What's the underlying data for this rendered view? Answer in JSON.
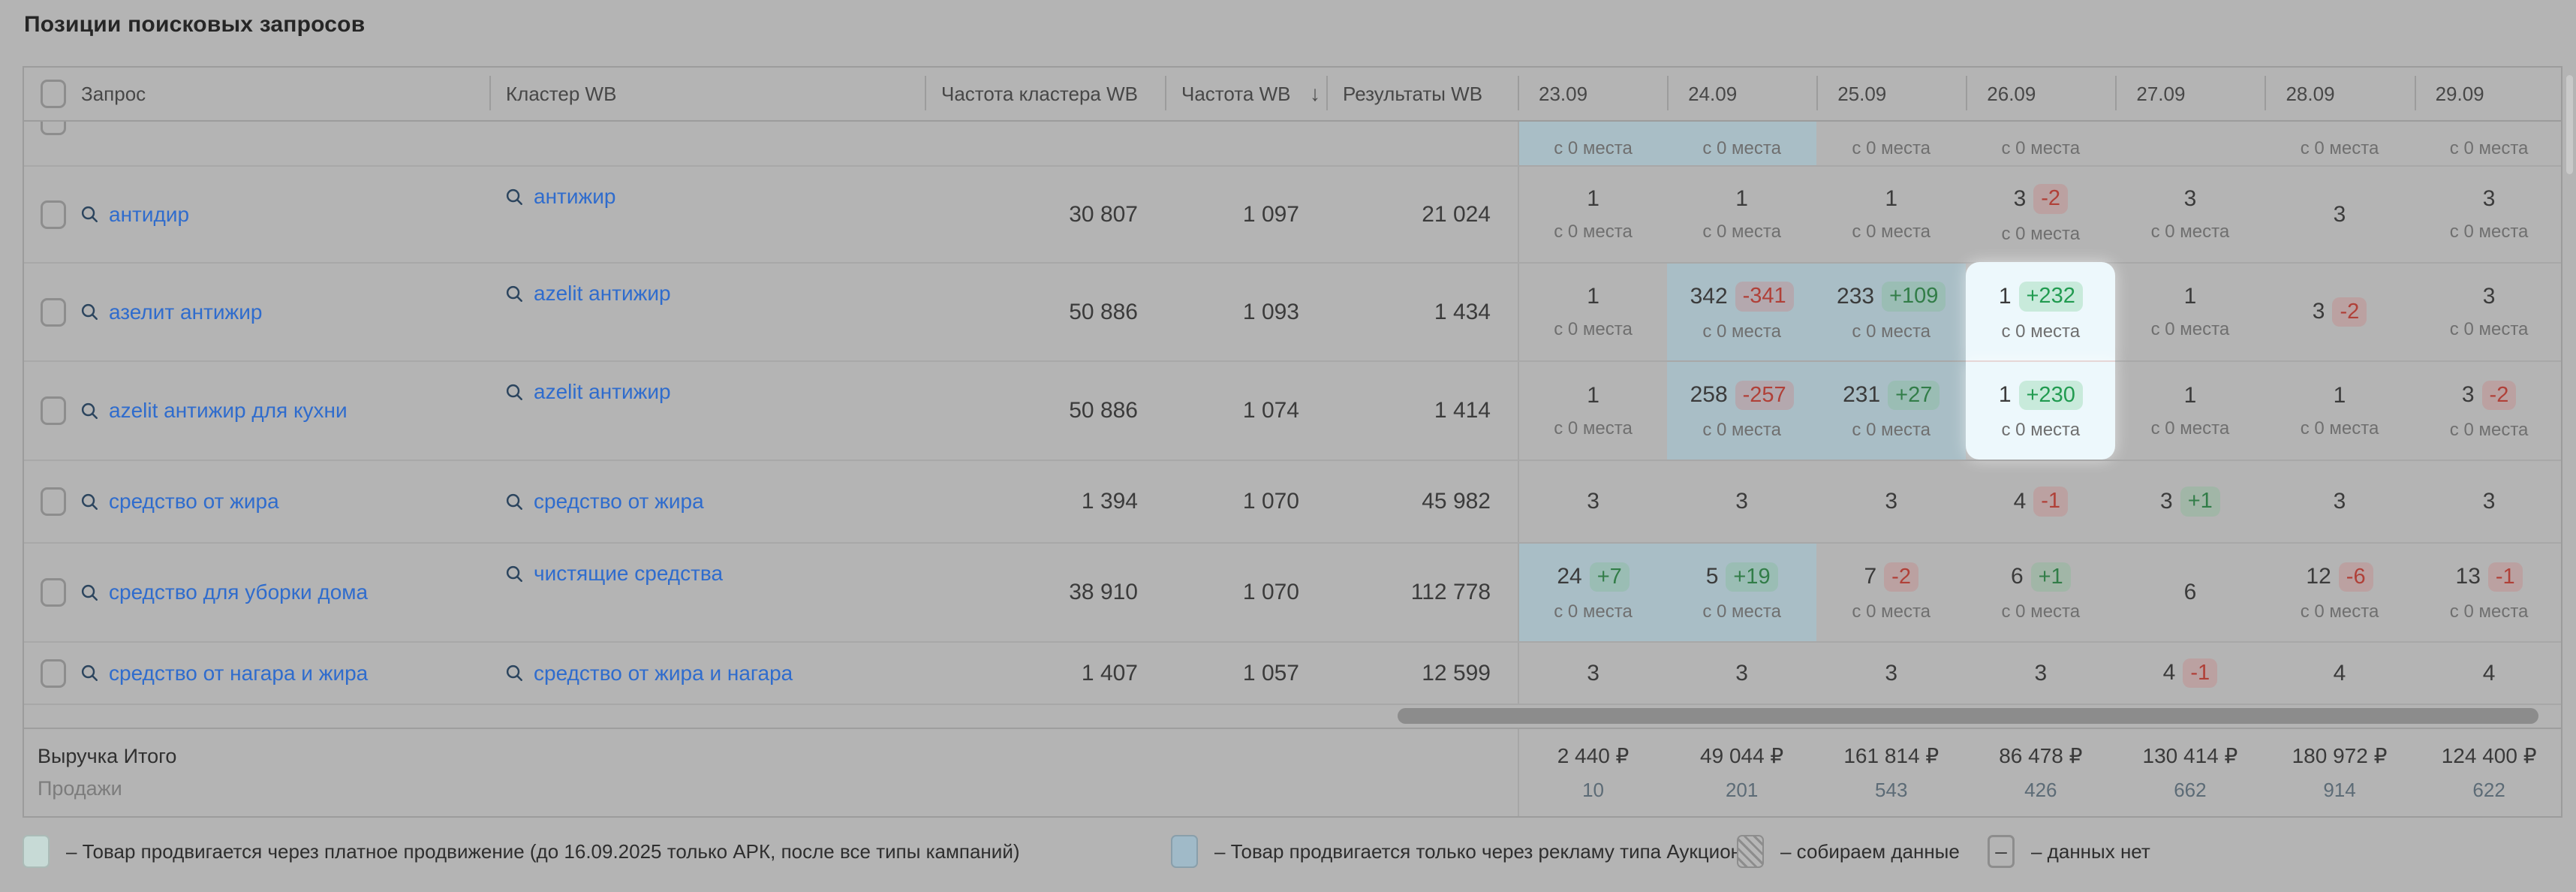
{
  "title": "Позиции поисковых запросов",
  "header": {
    "query": "Запрос",
    "cluster": "Кластер WB",
    "freq_cluster": "Частота кластера WB",
    "freq": "Частота WB",
    "sort_icon": "↓",
    "results": "Результаты WB",
    "dates": [
      "23.09",
      "24.09",
      "25.09",
      "26.09",
      "27.09",
      "28.09",
      "29.09"
    ]
  },
  "position_source_label": "с 0 места",
  "rows": [
    {
      "partial": true,
      "query": "",
      "cluster": "",
      "freq_cluster": "",
      "freq": "",
      "results": "",
      "cells": [
        {
          "sub": "с 0 места",
          "bg": "auction"
        },
        {
          "sub": "с 0 места",
          "bg": "auction"
        },
        {
          "sub": "с 0 места"
        },
        {
          "sub": "с 0 места"
        },
        {},
        {
          "sub": "с 0 места"
        },
        {
          "sub": "с 0 места"
        }
      ]
    },
    {
      "query": "антидир",
      "cluster": "антижир",
      "freq_cluster": "30 807",
      "freq": "1 097",
      "results": "21 024",
      "cells": [
        {
          "pos": "1",
          "sub": "с 0 места"
        },
        {
          "pos": "1",
          "sub": "с 0 места"
        },
        {
          "pos": "1",
          "sub": "с 0 места"
        },
        {
          "pos": "3",
          "change": "-2",
          "sub": "с 0 места"
        },
        {
          "pos": "3",
          "sub": "с 0 места"
        },
        {
          "pos": "3"
        },
        {
          "pos": "3",
          "sub": "с 0 места"
        }
      ]
    },
    {
      "query": "азелит антижир",
      "cluster": "azelit антижир",
      "freq_cluster": "50 886",
      "freq": "1 093",
      "results": "1 434",
      "cells": [
        {
          "pos": "1",
          "sub": "с 0 места"
        },
        {
          "pos": "342",
          "change": "-341",
          "sub": "с 0 места",
          "bg": "auction"
        },
        {
          "pos": "233",
          "change": "+109",
          "sub": "с 0 места",
          "bg": "auction"
        },
        {
          "pos": "1",
          "change": "+232",
          "sub": "с 0 места",
          "highlight": true
        },
        {
          "pos": "1",
          "sub": "с 0 места"
        },
        {
          "pos": "3",
          "change": "-2"
        },
        {
          "pos": "3",
          "sub": "с 0 места"
        }
      ]
    },
    {
      "query": "azelit антижир для кухни",
      "cluster": "azelit антижир",
      "freq_cluster": "50 886",
      "freq": "1 074",
      "results": "1 414",
      "cells": [
        {
          "pos": "1",
          "sub": "с 0 места"
        },
        {
          "pos": "258",
          "change": "-257",
          "sub": "с 0 места",
          "bg": "auction"
        },
        {
          "pos": "231",
          "change": "+27",
          "sub": "с 0 места",
          "bg": "auction"
        },
        {
          "pos": "1",
          "change": "+230",
          "sub": "с 0 места",
          "highlight": true
        },
        {
          "pos": "1",
          "sub": "с 0 места"
        },
        {
          "pos": "1",
          "sub": "с 0 места"
        },
        {
          "pos": "3",
          "change": "-2",
          "sub": "с 0 места"
        }
      ]
    },
    {
      "query": "средство от жира",
      "cluster": "средство от жира",
      "freq_cluster": "1 394",
      "freq": "1 070",
      "results": "45 982",
      "cells": [
        {
          "pos": "3"
        },
        {
          "pos": "3"
        },
        {
          "pos": "3"
        },
        {
          "pos": "4",
          "change": "-1"
        },
        {
          "pos": "3",
          "change": "+1"
        },
        {
          "pos": "3"
        },
        {
          "pos": "3"
        }
      ]
    },
    {
      "query": "средство для уборки дома",
      "cluster": "чистящие средства",
      "freq_cluster": "38 910",
      "freq": "1 070",
      "results": "112 778",
      "cells": [
        {
          "pos": "24",
          "change": "+7",
          "sub": "с 0 места",
          "bg": "auction"
        },
        {
          "pos": "5",
          "change": "+19",
          "sub": "с 0 места",
          "bg": "auction"
        },
        {
          "pos": "7",
          "change": "-2",
          "sub": "с 0 места"
        },
        {
          "pos": "6",
          "change": "+1",
          "sub": "с 0 места"
        },
        {
          "pos": "6"
        },
        {
          "pos": "12",
          "change": "-6",
          "sub": "с 0 места"
        },
        {
          "pos": "13",
          "change": "-1",
          "sub": "с 0 места"
        }
      ]
    },
    {
      "query": "средство от нагара и жира",
      "cluster": "средство от жира и нагара",
      "freq_cluster": "1 407",
      "freq": "1 057",
      "results": "12 599",
      "cells": [
        {
          "pos": "3"
        },
        {
          "pos": "3"
        },
        {
          "pos": "3"
        },
        {
          "pos": "3"
        },
        {
          "pos": "4",
          "change": "-1"
        },
        {
          "pos": "4"
        },
        {
          "pos": "4"
        }
      ]
    }
  ],
  "footer": {
    "revenue_label": "Выручка Итого",
    "sales_label": "Продажи",
    "totals": [
      {
        "revenue": "2 440 ₽",
        "sales": "10"
      },
      {
        "revenue": "49 044 ₽",
        "sales": "201"
      },
      {
        "revenue": "161 814 ₽",
        "sales": "543"
      },
      {
        "revenue": "86 478 ₽",
        "sales": "426"
      },
      {
        "revenue": "130 414 ₽",
        "sales": "662"
      },
      {
        "revenue": "180 972 ₽",
        "sales": "914"
      },
      {
        "revenue": "124 400 ₽",
        "sales": "622"
      }
    ]
  },
  "legend": [
    {
      "swatch": "promo",
      "text": "– Товар продвигается через платное продвижение (до 16.09.2025 только АРК, после все типы кампаний)"
    },
    {
      "swatch": "auction",
      "text": "– Товар продвигается только через рекламу типа Аукцион"
    },
    {
      "swatch": "collecting",
      "text": "– собираем данные"
    },
    {
      "swatch": "none",
      "swatch_glyph": "–",
      "text": "– данных нет"
    }
  ],
  "colors": {
    "auction_cell": "#a9bec6",
    "promo_swatch": "#c7dad6",
    "highlight_cell": "#edf8fc",
    "positive": "#2f7d45",
    "negative": "#b04038",
    "link": "#2f6ccd"
  }
}
